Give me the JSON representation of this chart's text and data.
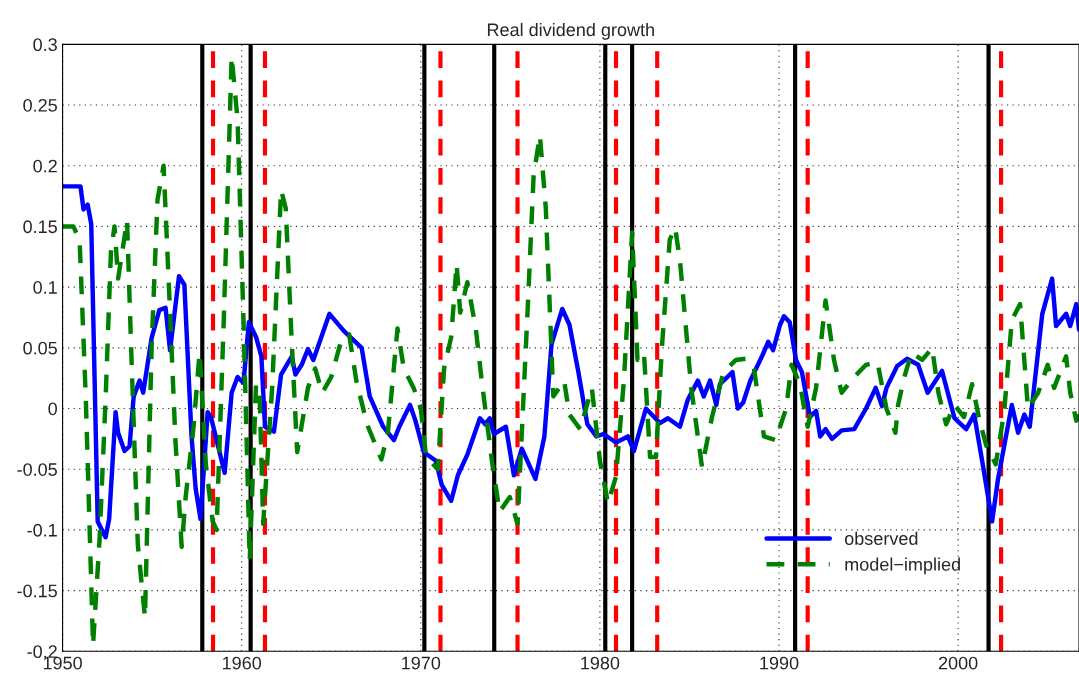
{
  "chart_data": {
    "type": "line",
    "title": "Real dividend growth",
    "xlim": [
      1950,
      2006.75
    ],
    "xticks": [
      1950,
      1960,
      1970,
      1980,
      1990,
      2000
    ],
    "ylim": [
      -0.2,
      0.3
    ],
    "yticks": [
      -0.2,
      -0.15,
      -0.1,
      -0.05,
      0,
      0.05,
      0.1,
      0.15,
      0.2,
      0.25,
      0.3
    ],
    "grid": true,
    "legend": "bottom right",
    "marker": "none",
    "series": [
      {
        "name": "observed",
        "color": "#0000ff",
        "line_style": "solid",
        "x": [
          1950.0,
          1951.0,
          1951.17,
          1951.4,
          1951.6,
          1951.96,
          1952.4,
          1952.6,
          1952.96,
          1953.1,
          1953.46,
          1953.74,
          1953.97,
          1954.3,
          1954.5,
          1954.97,
          1955.4,
          1955.75,
          1956.0,
          1956.5,
          1956.8,
          1957.2,
          1957.43,
          1957.7,
          1958.1,
          1958.3,
          1959.05,
          1959.44,
          1959.77,
          1960.1,
          1960.4,
          1960.8,
          1961.1,
          1961.3,
          1961.8,
          1962.2,
          1962.8,
          1963.0,
          1963.35,
          1963.7,
          1964.0,
          1964.9,
          1965.7,
          1966.7,
          1967.15,
          1967.9,
          1968.5,
          1968.8,
          1969.4,
          1969.7,
          1970.17,
          1970.84,
          1971.17,
          1971.7,
          1972.07,
          1972.6,
          1973.3,
          1973.6,
          1973.85,
          1974.08,
          1974.75,
          1975.2,
          1975.64,
          1976.4,
          1976.9,
          1977.3,
          1977.9,
          1978.3,
          1978.8,
          1979.3,
          1979.8,
          1980.2,
          1980.9,
          1981.56,
          1981.9,
          1982.57,
          1983.35,
          1983.8,
          1984.47,
          1984.9,
          1985.47,
          1985.8,
          1986.15,
          1986.5,
          1986.7,
          1987.4,
          1987.7,
          1988.0,
          1988.4,
          1989.05,
          1989.4,
          1989.67,
          1990.06,
          1990.28,
          1990.6,
          1990.95,
          1991.28,
          1991.73,
          1992.07,
          1992.3,
          1992.6,
          1992.96,
          1993.5,
          1994.2,
          1994.86,
          1995.4,
          1995.75,
          1996.0,
          1996.6,
          1997.15,
          1997.77,
          1998.3,
          1999.1,
          1999.8,
          2000.45,
          2000.9,
          2001.34,
          2001.9,
          2002.23,
          2003.0,
          2003.35,
          2003.7,
          2004.0,
          2004.7,
          2005.25,
          2005.47,
          2006.03,
          2006.26,
          2006.6,
          2006.75
        ],
        "values": [
          0.183,
          0.183,
          0.164,
          0.168,
          0.152,
          -0.093,
          -0.106,
          -0.091,
          -0.003,
          -0.02,
          -0.035,
          -0.031,
          0.01,
          0.023,
          0.013,
          0.058,
          0.081,
          0.083,
          0.048,
          0.109,
          0.102,
          -0.023,
          -0.066,
          -0.091,
          -0.003,
          -0.008,
          -0.053,
          0.013,
          0.026,
          0.021,
          0.071,
          0.059,
          0.043,
          -0.015,
          -0.019,
          0.028,
          0.043,
          0.028,
          0.036,
          0.049,
          0.04,
          0.078,
          0.064,
          0.05,
          0.01,
          -0.015,
          -0.026,
          -0.015,
          0.003,
          -0.01,
          -0.036,
          -0.043,
          -0.063,
          -0.076,
          -0.055,
          -0.038,
          -0.008,
          -0.013,
          -0.008,
          -0.021,
          -0.015,
          -0.055,
          -0.033,
          -0.058,
          -0.023,
          0.053,
          0.082,
          0.069,
          0.03,
          -0.013,
          -0.023,
          -0.021,
          -0.028,
          -0.023,
          -0.035,
          0.0,
          -0.012,
          -0.008,
          -0.015,
          0.007,
          0.023,
          0.01,
          0.023,
          0.003,
          0.02,
          0.03,
          0.0,
          0.005,
          0.023,
          0.043,
          0.055,
          0.048,
          0.069,
          0.076,
          0.071,
          0.04,
          0.03,
          -0.007,
          -0.002,
          -0.023,
          -0.017,
          -0.025,
          -0.018,
          -0.017,
          0.0,
          0.017,
          0.002,
          0.017,
          0.035,
          0.041,
          0.036,
          0.013,
          0.031,
          -0.008,
          -0.017,
          -0.005,
          -0.043,
          -0.093,
          -0.058,
          0.003,
          -0.02,
          -0.005,
          -0.015,
          0.078,
          0.107,
          0.068,
          0.078,
          0.068,
          0.086,
          0.065
        ]
      },
      {
        "name": "model−implied",
        "color": "#008000",
        "line_style": "dashed",
        "x": [
          1950.0,
          1950.6,
          1950.95,
          1951.3,
          1951.7,
          1952.06,
          1952.4,
          1952.7,
          1952.9,
          1953.1,
          1953.3,
          1953.6,
          1953.85,
          1954.2,
          1954.6,
          1954.97,
          1955.3,
          1955.64,
          1955.98,
          1956.3,
          1956.65,
          1956.87,
          1957.3,
          1957.65,
          1958.0,
          1958.38,
          1958.6,
          1959.0,
          1959.27,
          1959.44,
          1959.77,
          1960.1,
          1960.45,
          1960.8,
          1961.0,
          1961.2,
          1961.7,
          1962.2,
          1962.46,
          1962.8,
          1963.1,
          1963.7,
          1964.1,
          1964.5,
          1965.0,
          1965.5,
          1966.0,
          1966.4,
          1967.0,
          1967.8,
          1968.16,
          1968.7,
          1969.05,
          1969.6,
          1970.0,
          1970.3,
          1970.95,
          1971.3,
          1971.7,
          1972.0,
          1972.2,
          1972.6,
          1973.07,
          1973.4,
          1973.97,
          1974.4,
          1974.97,
          1975.4,
          1975.98,
          1976.3,
          1976.65,
          1976.98,
          1977.4,
          1978.0,
          1978.3,
          1978.9,
          1979.55,
          1980.0,
          1980.45,
          1980.9,
          1981.34,
          1981.8,
          1982.1,
          1982.46,
          1982.8,
          1983.13,
          1983.46,
          1983.9,
          1984.2,
          1984.47,
          1985.1,
          1985.7,
          1986.26,
          1986.9,
          1987.6,
          1988.16,
          1988.6,
          1989.16,
          1989.8,
          1990.4,
          1990.7,
          1991.17,
          1991.6,
          1992.07,
          1992.6,
          1993.07,
          1993.5,
          1994.2,
          1994.86,
          1995.5,
          1996.0,
          1996.5,
          1996.65,
          1997.0,
          1997.4,
          1998.0,
          1998.55,
          1998.9,
          1999.33,
          1999.8,
          2000.33,
          2000.78,
          2001.2,
          2001.56,
          2002.1,
          2002.57,
          2003.0,
          2003.46,
          2003.9,
          2004.47,
          2005.0,
          2005.36,
          2005.7,
          2006.03,
          2006.26,
          2006.6,
          2006.75
        ],
        "values": [
          0.15,
          0.15,
          0.139,
          0.007,
          -0.195,
          -0.109,
          0.007,
          0.129,
          0.15,
          0.107,
          0.126,
          0.155,
          0.04,
          -0.112,
          -0.172,
          0.05,
          0.172,
          0.2,
          0.086,
          -0.026,
          -0.114,
          -0.073,
          -0.017,
          0.046,
          -0.046,
          -0.093,
          -0.1,
          0.073,
          0.205,
          0.29,
          0.238,
          0.073,
          -0.125,
          0.02,
          0.013,
          -0.095,
          0.017,
          0.18,
          0.165,
          0.053,
          -0.036,
          0.017,
          0.033,
          0.013,
          0.026,
          0.053,
          0.061,
          0.023,
          -0.013,
          -0.042,
          -0.02,
          0.066,
          0.033,
          0.017,
          0.0,
          -0.04,
          -0.05,
          0.033,
          0.059,
          0.119,
          0.079,
          0.104,
          0.066,
          0.023,
          -0.043,
          -0.085,
          -0.073,
          -0.095,
          0.086,
          0.192,
          0.225,
          0.165,
          0.01,
          0.023,
          -0.005,
          -0.017,
          0.017,
          -0.043,
          -0.078,
          -0.056,
          0.023,
          0.145,
          0.04,
          0.046,
          -0.04,
          -0.04,
          0.05,
          0.139,
          0.149,
          0.122,
          0.017,
          -0.048,
          -0.007,
          0.03,
          0.04,
          0.041,
          0.033,
          -0.023,
          -0.026,
          0.0,
          0.036,
          0.02,
          -0.015,
          0.017,
          0.089,
          0.04,
          0.013,
          0.026,
          0.036,
          0.038,
          0.0,
          -0.02,
          0.003,
          0.026,
          0.046,
          0.04,
          0.05,
          0.013,
          -0.013,
          0.003,
          -0.007,
          0.02,
          -0.01,
          -0.03,
          -0.046,
          -0.003,
          0.073,
          0.086,
          0.0,
          0.013,
          0.036,
          0.017,
          0.03,
          0.043,
          0.013,
          -0.01,
          -0.005
        ]
      }
    ],
    "ref_lines": [
      {
        "axis": "x",
        "value": 1957.8,
        "color": "#000000",
        "line_style": "solid"
      },
      {
        "axis": "x",
        "value": 1960.5,
        "color": "#000000",
        "line_style": "solid"
      },
      {
        "axis": "x",
        "value": 1970.2,
        "color": "#000000",
        "line_style": "solid"
      },
      {
        "axis": "x",
        "value": 1974.1,
        "color": "#000000",
        "line_style": "solid"
      },
      {
        "axis": "x",
        "value": 1980.3,
        "color": "#000000",
        "line_style": "solid"
      },
      {
        "axis": "x",
        "value": 1981.8,
        "color": "#000000",
        "line_style": "solid"
      },
      {
        "axis": "x",
        "value": 1990.9,
        "color": "#000000",
        "line_style": "solid"
      },
      {
        "axis": "x",
        "value": 2001.7,
        "color": "#000000",
        "line_style": "solid"
      },
      {
        "axis": "x",
        "value": 1958.4,
        "color": "#ff0000",
        "line_style": "dashed"
      },
      {
        "axis": "x",
        "value": 1961.3,
        "color": "#ff0000",
        "line_style": "dashed"
      },
      {
        "axis": "x",
        "value": 1971.1,
        "color": "#ff0000",
        "line_style": "dashed"
      },
      {
        "axis": "x",
        "value": 1975.4,
        "color": "#ff0000",
        "line_style": "dashed"
      },
      {
        "axis": "x",
        "value": 1980.9,
        "color": "#ff0000",
        "line_style": "dashed"
      },
      {
        "axis": "x",
        "value": 1983.2,
        "color": "#ff0000",
        "line_style": "dashed"
      },
      {
        "axis": "x",
        "value": 1991.6,
        "color": "#ff0000",
        "line_style": "dashed"
      },
      {
        "axis": "x",
        "value": 2002.4,
        "color": "#ff0000",
        "line_style": "dashed"
      }
    ]
  }
}
